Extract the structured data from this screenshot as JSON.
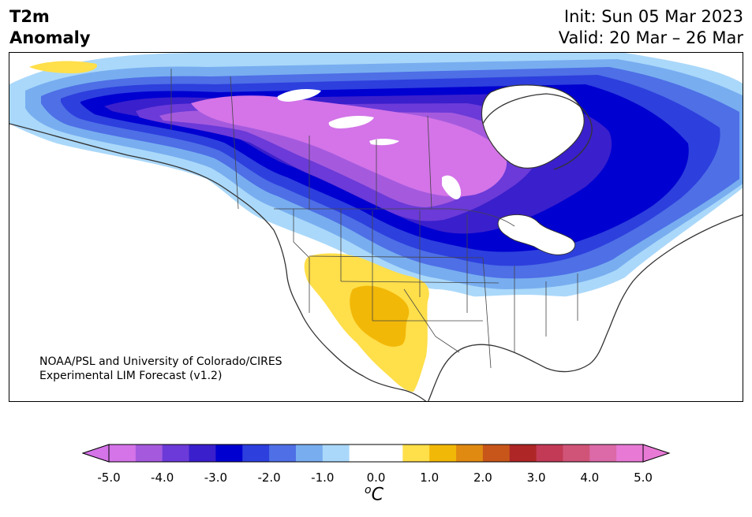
{
  "title": {
    "line1": "T2m",
    "line2": "Anomaly"
  },
  "init": "Init: Sun 05 Mar 2023",
  "valid": "Valid: 20 Mar – 26 Mar",
  "credit": {
    "line1": "NOAA/PSL and University of Colorado/CIRES",
    "line2": "Experimental LIM Forecast (v1.2)"
  },
  "colorbar": {
    "ticks": [
      "-5.0",
      "-4.0",
      "-3.0",
      "-2.0",
      "-1.0",
      "0.0",
      "1.0",
      "2.0",
      "3.0",
      "4.0",
      "5.0"
    ],
    "unit_base": "C",
    "unit_sup": "o",
    "colors": [
      "#d474e8",
      "#a55ade",
      "#6b3ad8",
      "#3a1fcc",
      "#0000d0",
      "#2d3fdd",
      "#4e6fe6",
      "#78aef0",
      "#aad8fa",
      "#ffffff",
      "#ffffff",
      "#ffdf4a",
      "#f2b807",
      "#e08a12",
      "#c8561a",
      "#ae2626",
      "#c23a55",
      "#d05478",
      "#dc6aa8",
      "#e87ad6"
    ],
    "extend_low_color": "#d474e8",
    "extend_high_color": "#e87ad6"
  },
  "map": {
    "region": "North America",
    "variable": "2m temperature anomaly",
    "features": [
      "coastlines",
      "state borders",
      "province borders",
      "country borders"
    ]
  }
}
